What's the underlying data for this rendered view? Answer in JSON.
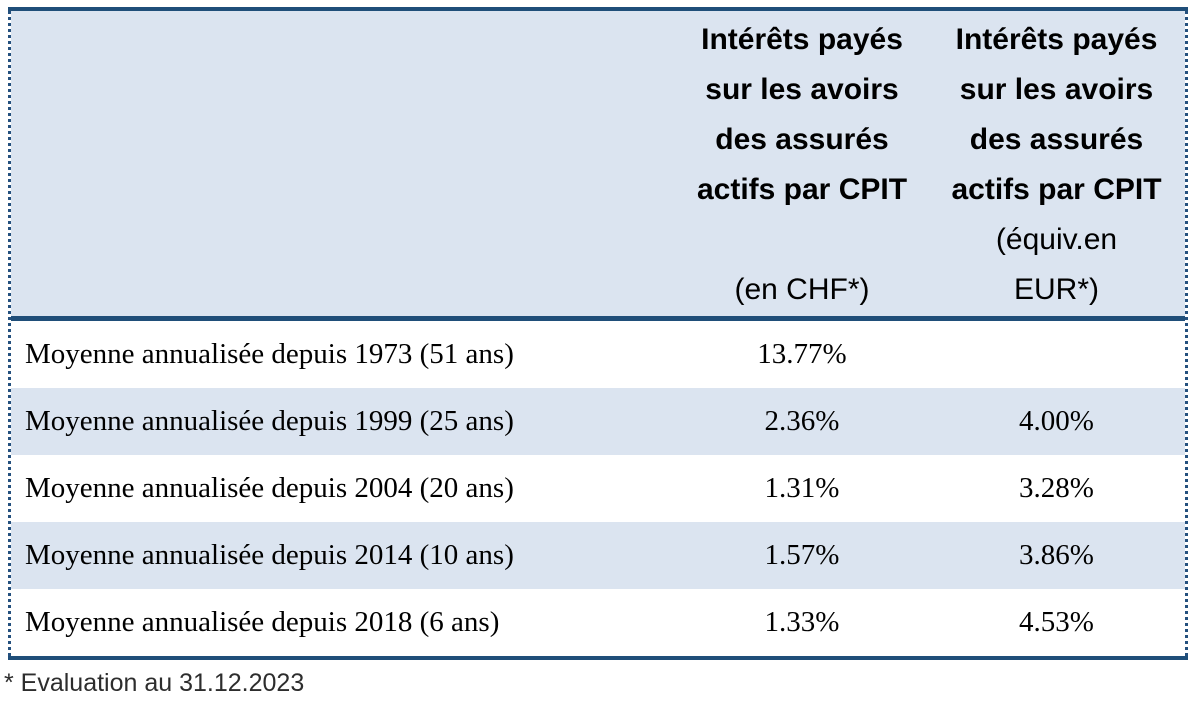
{
  "table": {
    "header": {
      "col_chf_lines": [
        "Intérêts payés",
        "sur les avoirs",
        "des assurés",
        "actifs par CPIT",
        "",
        "(en CHF*)"
      ],
      "col_eur_lines": [
        "Intérêts payés",
        "sur les avoirs",
        "des assurés",
        "actifs par CPIT",
        "(équiv.en",
        "EUR*)"
      ]
    },
    "rows": [
      {
        "label": "Moyenne annualisée depuis 1973 (51 ans)",
        "chf": "13.77%",
        "eur": ""
      },
      {
        "label": "Moyenne annualisée depuis 1999 (25 ans)",
        "chf": "2.36%",
        "eur": "4.00%"
      },
      {
        "label": "Moyenne annualisée depuis 2004 (20 ans)",
        "chf": "1.31%",
        "eur": "3.28%"
      },
      {
        "label": "Moyenne annualisée depuis 2014 (10 ans)",
        "chf": "1.57%",
        "eur": "3.86%"
      },
      {
        "label": "Moyenne annualisée depuis 2018 (6 ans)",
        "chf": "1.33%",
        "eur": "4.53%"
      }
    ]
  },
  "footnote": "* Evaluation au 31.12.2023",
  "colors": {
    "accent_navy": "#1f4e79",
    "band_blue": "#dbe4f0",
    "footnote_text": "#2d2d2d"
  }
}
